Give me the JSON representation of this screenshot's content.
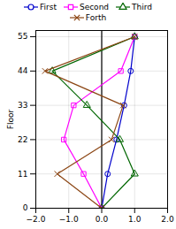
{
  "chart_data": {
    "type": "line",
    "title": "",
    "ylabel": "Floor",
    "xlim": [
      -2,
      2
    ],
    "ylim": [
      0,
      57
    ],
    "xticks": [
      -2,
      -1,
      0,
      1,
      2
    ],
    "yticks": [
      0,
      11,
      22,
      33,
      44,
      55
    ],
    "grid": true,
    "legend": "top",
    "vline_x": 0,
    "series": [
      {
        "name": "First",
        "color": "#0000cc",
        "marker": "circle",
        "x": [
          0.0,
          0.18,
          0.45,
          0.68,
          0.88,
          1.0
        ],
        "y": [
          0,
          11,
          22,
          33,
          44,
          55
        ]
      },
      {
        "name": "Second",
        "color": "#ff00ff",
        "marker": "square",
        "x": [
          0.0,
          -0.55,
          -1.15,
          -0.85,
          0.58,
          1.0
        ],
        "y": [
          0,
          11,
          22,
          33,
          44,
          55
        ]
      },
      {
        "name": "Third",
        "color": "#006600",
        "marker": "triangle",
        "x": [
          0.0,
          1.0,
          0.55,
          -0.45,
          -1.5,
          1.0
        ],
        "y": [
          0,
          11,
          22,
          33,
          44,
          55
        ]
      },
      {
        "name": "Forth",
        "color": "#8B4513",
        "marker": "times",
        "x": [
          0.0,
          -1.35,
          0.3,
          0.65,
          -1.72,
          1.0
        ],
        "y": [
          0,
          11,
          22,
          33,
          44,
          55
        ]
      }
    ]
  }
}
